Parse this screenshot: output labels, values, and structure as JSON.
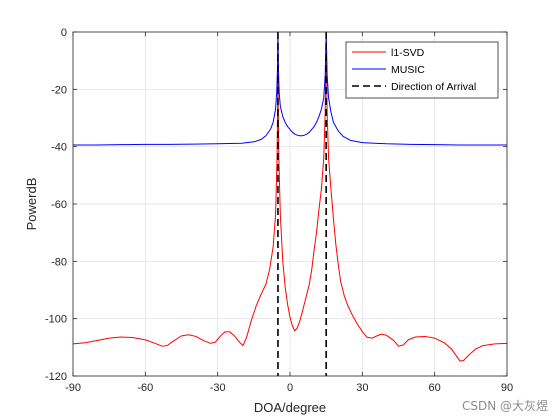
{
  "chart_data": {
    "type": "line",
    "xlabel": "DOA/degree",
    "ylabel": "PowerdB",
    "xlim": [
      -90,
      90
    ],
    "ylim": [
      -120,
      0
    ],
    "xticks": [
      -90,
      -60,
      -30,
      0,
      30,
      60,
      90
    ],
    "yticks": [
      0,
      -20,
      -40,
      -60,
      -80,
      -100,
      -120
    ],
    "grid": true,
    "legend_position": "top-right",
    "series": [
      {
        "name": "l1-SVD",
        "color": "#ff0000",
        "style": "solid",
        "points": [
          [
            -90,
            -108.8
          ],
          [
            -85,
            -108.4
          ],
          [
            -80,
            -107.6
          ],
          [
            -75,
            -106.8
          ],
          [
            -70,
            -106.4
          ],
          [
            -65,
            -106.6
          ],
          [
            -60,
            -107.4
          ],
          [
            -56,
            -108.6
          ],
          [
            -53,
            -109.6
          ],
          [
            -51,
            -109.4
          ],
          [
            -48,
            -107.6
          ],
          [
            -45,
            -106.0
          ],
          [
            -42,
            -105.6
          ],
          [
            -39,
            -106.2
          ],
          [
            -36,
            -107.6
          ],
          [
            -33,
            -108.6
          ],
          [
            -31,
            -108.2
          ],
          [
            -29,
            -106.2
          ],
          [
            -27,
            -104.6
          ],
          [
            -25,
            -104.6
          ],
          [
            -23,
            -106.0
          ],
          [
            -21,
            -108.2
          ],
          [
            -19.5,
            -109.4
          ],
          [
            -18,
            -106.5
          ],
          [
            -16,
            -100.5
          ],
          [
            -14,
            -95.5
          ],
          [
            -12,
            -91.5
          ],
          [
            -10,
            -88
          ],
          [
            -8.5,
            -83
          ],
          [
            -7,
            -75
          ],
          [
            -6,
            -64
          ],
          [
            -5.4,
            -45
          ],
          [
            -5.1,
            -25
          ],
          [
            -5,
            0
          ],
          [
            -4.9,
            -25
          ],
          [
            -4.6,
            -45
          ],
          [
            -4,
            -64
          ],
          [
            -3,
            -80
          ],
          [
            -2,
            -89
          ],
          [
            -1,
            -95
          ],
          [
            0,
            -99.5
          ],
          [
            1,
            -102.5
          ],
          [
            2,
            -104.3
          ],
          [
            3,
            -103.2
          ],
          [
            4,
            -101
          ],
          [
            5,
            -98
          ],
          [
            6.5,
            -93
          ],
          [
            8,
            -88
          ],
          [
            9,
            -83
          ],
          [
            10,
            -76
          ],
          [
            11,
            -70
          ],
          [
            12,
            -62
          ],
          [
            13,
            -55
          ],
          [
            14,
            -44
          ],
          [
            14.6,
            -28
          ],
          [
            15,
            0
          ],
          [
            15.4,
            -28
          ],
          [
            16,
            -44
          ],
          [
            17,
            -55
          ],
          [
            18,
            -65
          ],
          [
            19,
            -74
          ],
          [
            20,
            -81
          ],
          [
            21,
            -87
          ],
          [
            22.5,
            -92
          ],
          [
            24,
            -95.5
          ],
          [
            26,
            -99
          ],
          [
            28,
            -102
          ],
          [
            30,
            -104.5
          ],
          [
            32,
            -106.5
          ],
          [
            34,
            -106.8
          ],
          [
            36,
            -106.0
          ],
          [
            38,
            -105.4
          ],
          [
            40,
            -105.8
          ],
          [
            43,
            -107.6
          ],
          [
            45,
            -109.6
          ],
          [
            47,
            -109.2
          ],
          [
            49,
            -107.4
          ],
          [
            52,
            -106.4
          ],
          [
            56,
            -106.2
          ],
          [
            60,
            -106.8
          ],
          [
            64,
            -108.4
          ],
          [
            67,
            -110.6
          ],
          [
            69,
            -113
          ],
          [
            70.5,
            -114.8
          ],
          [
            72,
            -114.6
          ],
          [
            74,
            -112.8
          ],
          [
            77,
            -110.6
          ],
          [
            80,
            -109.4
          ],
          [
            85,
            -108.8
          ],
          [
            90,
            -108.6
          ]
        ]
      },
      {
        "name": "MUSIC",
        "color": "#0000ff",
        "style": "solid",
        "points": [
          [
            -90,
            -39.4
          ],
          [
            -80,
            -39.4
          ],
          [
            -70,
            -39.3
          ],
          [
            -60,
            -39.2
          ],
          [
            -50,
            -39.2
          ],
          [
            -40,
            -39.1
          ],
          [
            -30,
            -39.0
          ],
          [
            -20,
            -38.8
          ],
          [
            -15,
            -38.3
          ],
          [
            -12,
            -37.5
          ],
          [
            -10,
            -36.2
          ],
          [
            -8,
            -33.8
          ],
          [
            -7,
            -31.5
          ],
          [
            -6,
            -27
          ],
          [
            -5.5,
            -21
          ],
          [
            -5.2,
            -13
          ],
          [
            -5,
            0
          ],
          [
            -4.8,
            -13
          ],
          [
            -4.5,
            -21
          ],
          [
            -4,
            -26
          ],
          [
            -3,
            -29.5
          ],
          [
            -2,
            -31.5
          ],
          [
            -1,
            -33
          ],
          [
            0,
            -34
          ],
          [
            1,
            -35
          ],
          [
            2,
            -35.6
          ],
          [
            3,
            -36
          ],
          [
            4,
            -36.2
          ],
          [
            5,
            -36.2
          ],
          [
            6,
            -36
          ],
          [
            7,
            -35.6
          ],
          [
            8,
            -35
          ],
          [
            9,
            -34
          ],
          [
            10,
            -33
          ],
          [
            11,
            -31.5
          ],
          [
            12,
            -29.5
          ],
          [
            13,
            -27
          ],
          [
            14,
            -23
          ],
          [
            14.6,
            -15
          ],
          [
            15,
            0
          ],
          [
            15.4,
            -15
          ],
          [
            16,
            -23
          ],
          [
            17,
            -28
          ],
          [
            18,
            -31.5
          ],
          [
            20,
            -34.5
          ],
          [
            22,
            -36.4
          ],
          [
            25,
            -37.8
          ],
          [
            30,
            -38.6
          ],
          [
            40,
            -39.0
          ],
          [
            50,
            -39.2
          ],
          [
            60,
            -39.3
          ],
          [
            70,
            -39.4
          ],
          [
            80,
            -39.4
          ],
          [
            90,
            -39.4
          ]
        ]
      },
      {
        "name": "Direction of Arrival",
        "color": "#000000",
        "style": "dashed",
        "x_values": [
          -5,
          15
        ]
      }
    ]
  },
  "watermark": "CSDN @大灰煜"
}
